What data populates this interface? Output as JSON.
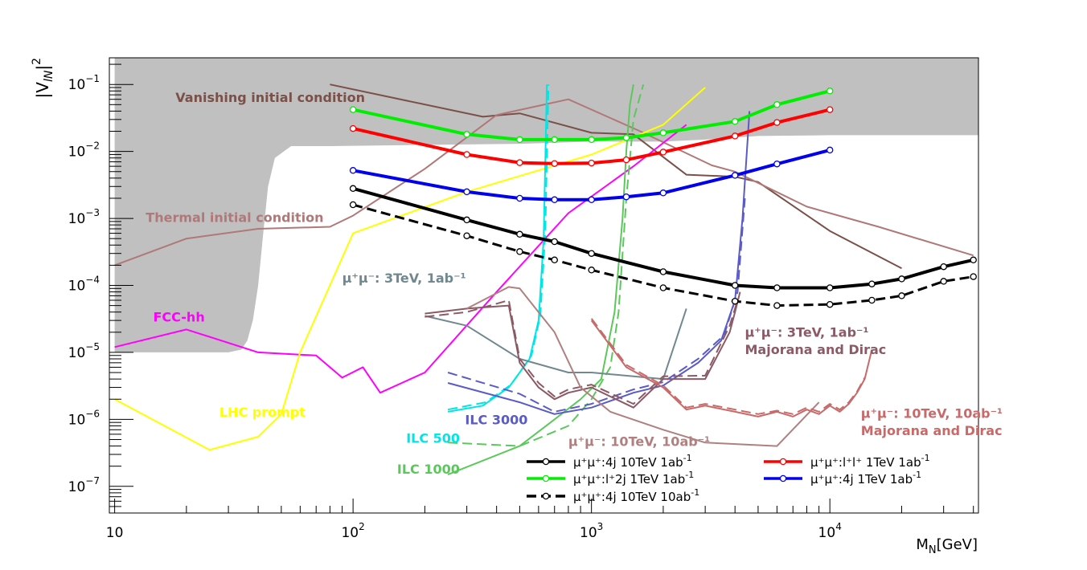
{
  "chart_data": {
    "type": "line",
    "x_scale": "log",
    "y_scale": "log",
    "xlim": [
      9.5,
      42000
    ],
    "ylim": [
      4e-08,
      0.25
    ],
    "xlabel": "M_N[GeV]",
    "ylabel": "|V_lN|^2",
    "x_ticks": [
      {
        "value": 10,
        "mantissa": "10",
        "exp": ""
      },
      {
        "value": 100,
        "mantissa": "10",
        "exp": "2"
      },
      {
        "value": 1000,
        "mantissa": "10",
        "exp": "3"
      },
      {
        "value": 10000,
        "mantissa": "10",
        "exp": "4"
      }
    ],
    "y_ticks": [
      {
        "value": 1e-07,
        "mantissa": "10",
        "exp": "−7"
      },
      {
        "value": 1e-06,
        "mantissa": "10",
        "exp": "−6"
      },
      {
        "value": 1e-05,
        "mantissa": "10",
        "exp": "−5"
      },
      {
        "value": 0.0001,
        "mantissa": "10",
        "exp": "−4"
      },
      {
        "value": 0.001,
        "mantissa": "10",
        "exp": "−3"
      },
      {
        "value": 0.01,
        "mantissa": "10",
        "exp": "−2"
      },
      {
        "value": 0.1,
        "mantissa": "10",
        "exp": "−1"
      }
    ],
    "excluded_regions": [
      {
        "name": "Vanishing and thermal initial condition region",
        "color": "#c0c0c0",
        "lower_boundary": [
          [
            10,
            1e-05
          ],
          [
            30,
            1e-05
          ],
          [
            34,
            1.1e-05
          ],
          [
            36,
            1.5e-05
          ],
          [
            38,
            3e-05
          ],
          [
            40,
            0.0001
          ],
          [
            42,
            0.0006
          ],
          [
            44,
            0.003
          ],
          [
            47,
            0.008
          ],
          [
            55,
            0.012
          ],
          [
            80,
            0.012
          ],
          [
            200,
            0.0125
          ],
          [
            500,
            0.013
          ],
          [
            1000,
            0.014
          ],
          [
            2000,
            0.014
          ],
          [
            3000,
            0.015
          ],
          [
            5000,
            0.017
          ],
          [
            10000,
            0.0175
          ],
          [
            42000,
            0.0175
          ]
        ]
      }
    ],
    "series": [
      {
        "name": "Vanishing initial condition",
        "color": "#7a5048",
        "style": "solid",
        "width": 2,
        "x": [
          80,
          350,
          500,
          1000,
          1500,
          2500,
          4000,
          5000,
          10000,
          20000
        ],
        "y": [
          0.1,
          0.033,
          0.037,
          0.019,
          0.018,
          0.0045,
          0.0042,
          0.0035,
          0.00065,
          0.00018
        ]
      },
      {
        "name": "Thermal initial condition",
        "color": "#b07878",
        "style": "solid",
        "width": 2,
        "x": [
          10,
          20,
          40,
          80,
          100,
          200,
          400,
          800,
          1600,
          3200,
          4000,
          8000,
          16000,
          40000
        ],
        "y": [
          0.0002,
          0.0005,
          0.0007,
          0.00075,
          0.0011,
          0.0055,
          0.035,
          0.06,
          0.02,
          0.0062,
          0.005,
          0.0015,
          0.00075,
          0.00028
        ]
      },
      {
        "name": "FCC-hh",
        "color": "#ff00ff",
        "style": "solid",
        "width": 2,
        "x": [
          10,
          20,
          40,
          70,
          90,
          110,
          130,
          200,
          400,
          800,
          1500,
          2500
        ],
        "y": [
          1.2e-05,
          2.2e-05,
          1e-05,
          9e-06,
          4.2e-06,
          6e-06,
          2.5e-06,
          5e-06,
          8e-05,
          0.0012,
          0.006,
          0.025
        ]
      },
      {
        "name": "LHC prompt",
        "color": "#ffff00",
        "style": "solid",
        "width": 2,
        "x": [
          10,
          25,
          40,
          50,
          60,
          100,
          300,
          1000,
          2000,
          3000
        ],
        "y": [
          2e-06,
          3.5e-07,
          5.5e-07,
          1.2e-06,
          1e-05,
          0.0006,
          0.0025,
          0.009,
          0.025,
          0.09
        ]
      },
      {
        "name": "ILC 500",
        "color": "#00e5e5",
        "style": "solid",
        "width": 2,
        "x": [
          250,
          350,
          450,
          550,
          600,
          630,
          650
        ],
        "y": [
          1.3e-06,
          1.6e-06,
          3e-06,
          8e-06,
          3e-05,
          0.0005,
          0.1
        ]
      },
      {
        "name": "ILC 500 dashed",
        "color": "#00e5e5",
        "style": "dashed",
        "width": 2,
        "x": [
          250,
          360,
          460,
          560,
          610,
          640,
          660
        ],
        "y": [
          1.4e-06,
          1.8e-06,
          3.3e-06,
          9e-06,
          3.5e-05,
          0.0006,
          0.1
        ]
      },
      {
        "name": "ILC 1000",
        "color": "#5cc85c",
        "style": "solid",
        "width": 2,
        "x": [
          250,
          500,
          700,
          900,
          1100,
          1250,
          1350,
          1400,
          1450,
          1500
        ],
        "y": [
          1.5e-07,
          4e-07,
          1e-06,
          2e-06,
          4e-06,
          4e-05,
          0.001,
          0.01,
          0.05,
          0.1
        ]
      },
      {
        "name": "ILC 1000 dashed",
        "color": "#5cc85c",
        "style": "dashed",
        "width": 2,
        "x": [
          250,
          500,
          800,
          1000,
          1200,
          1300,
          1400,
          1500,
          1650
        ],
        "y": [
          4.5e-07,
          4e-07,
          8e-07,
          2e-06,
          6e-06,
          4e-05,
          0.002,
          0.03,
          0.1
        ]
      },
      {
        "name": "ILC 3000",
        "color": "#5a5ac8",
        "style": "solid",
        "width": 2,
        "x": [
          250,
          500,
          700,
          1000,
          1500,
          2000,
          2800,
          3500,
          4000,
          4300,
          4600
        ],
        "y": [
          3.5e-06,
          1.8e-06,
          1.2e-06,
          1.5e-06,
          2.5e-06,
          3.2e-06,
          7e-06,
          1.5e-05,
          6e-05,
          0.001,
          0.04
        ]
      },
      {
        "name": "ILC 3000 dashed",
        "color": "#5a5ac8",
        "style": "dashed",
        "width": 2,
        "x": [
          250,
          500,
          700,
          1000,
          1500,
          2000,
          2800,
          3600,
          4100,
          4400
        ],
        "y": [
          5e-06,
          2.4e-06,
          1.3e-06,
          1.7e-06,
          2.8e-06,
          3.6e-06,
          8e-06,
          1.8e-05,
          8e-05,
          0.002
        ]
      },
      {
        "name": "mu+mu-: 3TeV 1ab-1",
        "color": "#708890",
        "style": "solid",
        "width": 2,
        "x": [
          200,
          300,
          500,
          800,
          1000,
          2000,
          2500
        ],
        "y": [
          3.5e-05,
          2.5e-05,
          8e-06,
          5e-06,
          5e-06,
          4e-06,
          4.5e-05
        ]
      },
      {
        "name": "mu+mu-: 3TeV 1ab-1 Majorana and Dirac",
        "color": "#8b5a64",
        "style": "solid",
        "width": 2,
        "x": [
          200,
          300,
          450,
          500,
          600,
          700,
          800,
          1000,
          1500,
          2000,
          3000,
          3800,
          4000,
          4200
        ],
        "y": [
          3.8e-05,
          4.5e-05,
          5e-05,
          7e-06,
          3e-06,
          2e-06,
          2.5e-06,
          3e-06,
          1.5e-06,
          4e-06,
          4e-06,
          2e-05,
          4e-05,
          8e-05
        ]
      },
      {
        "name": "mu+mu-: 3TeV 1ab-1 Majorana and Dirac dashed",
        "color": "#8b5a64",
        "style": "dashed",
        "width": 2,
        "x": [
          200,
          300,
          450,
          500,
          600,
          700,
          800,
          1000,
          1500,
          2000,
          3000,
          3800,
          4100
        ],
        "y": [
          3.4e-05,
          4e-05,
          6e-05,
          8e-06,
          3.5e-06,
          2.2e-06,
          2.8e-06,
          3.3e-06,
          1.7e-06,
          4.4e-06,
          4.5e-06,
          2.5e-05,
          6e-05
        ]
      },
      {
        "name": "mu+mu-: 10TeV 10ab-1",
        "color": "#b08080",
        "style": "solid",
        "width": 2,
        "x": [
          300,
          450,
          500,
          700,
          900,
          1200,
          2000,
          3000,
          6000,
          9000
        ],
        "y": [
          4.5e-05,
          9.5e-05,
          9e-05,
          2e-05,
          3e-06,
          1.3e-06,
          7e-07,
          4.5e-07,
          4e-07,
          1.8e-06
        ]
      },
      {
        "name": "mu+mu-: 10TeV 10ab-1 Majorana and Dirac",
        "color": "#c86a6a",
        "style": "solid",
        "width": 2,
        "x": [
          1000,
          1400,
          2000,
          2500,
          3000,
          4000,
          5000,
          6000,
          7000,
          8000,
          9000,
          10000,
          11000,
          12000,
          13000,
          14000,
          15000
        ],
        "y": [
          3e-05,
          6e-06,
          3e-06,
          1.4e-06,
          1.6e-06,
          1.3e-06,
          1.1e-06,
          1.3e-06,
          1.1e-06,
          1.4e-06,
          1.2e-06,
          1.6e-06,
          1.3e-06,
          1.7e-06,
          2.5e-06,
          4e-06,
          1.1e-05
        ]
      },
      {
        "name": "mu+mu-: 10TeV 10ab-1 Majorana and Dirac dashed",
        "color": "#c86a6a",
        "style": "dashed",
        "width": 2,
        "x": [
          1000,
          1400,
          2000,
          2500,
          3000,
          4000,
          5000,
          6000,
          7000,
          8000,
          9000,
          10000,
          11000,
          12000,
          13000,
          14000
        ],
        "y": [
          3.2e-05,
          6.5e-06,
          3.2e-06,
          1.5e-06,
          1.7e-06,
          1.4e-06,
          1.2e-06,
          1.35e-06,
          1.2e-06,
          1.5e-06,
          1.3e-06,
          1.7e-06,
          1.4e-06,
          1.8e-06,
          2.6e-06,
          4.2e-06
        ]
      },
      {
        "name": "μ⁺μ⁺:l⁺2j 1TeV 1ab⁻¹",
        "color": "#00ee00",
        "style": "solid",
        "width": 4,
        "marker": "circle",
        "x": [
          100,
          300,
          500,
          700,
          1000,
          1400,
          2000,
          4000,
          6000,
          10000
        ],
        "y": [
          0.042,
          0.018,
          0.015,
          0.015,
          0.015,
          0.016,
          0.019,
          0.028,
          0.05,
          0.08
        ]
      },
      {
        "name": "μ⁺μ⁺:l⁺l⁺ 1TeV 1ab⁻¹",
        "color": "#ff0000",
        "style": "solid",
        "width": 4,
        "marker": "circle",
        "x": [
          100,
          300,
          500,
          700,
          1000,
          1400,
          2000,
          4000,
          6000,
          10000
        ],
        "y": [
          0.022,
          0.009,
          0.0068,
          0.0066,
          0.0067,
          0.0075,
          0.0098,
          0.017,
          0.027,
          0.042
        ]
      },
      {
        "name": "μ⁺μ⁺:4j 1TeV 1ab⁻¹",
        "color": "#0000ee",
        "style": "solid",
        "width": 4,
        "marker": "circle",
        "x": [
          100,
          300,
          500,
          700,
          1000,
          1400,
          2000,
          4000,
          6000,
          10000
        ],
        "y": [
          0.0052,
          0.0025,
          0.002,
          0.0019,
          0.0019,
          0.0021,
          0.0024,
          0.0044,
          0.0065,
          0.0105
        ]
      },
      {
        "name": "μ⁺μ⁺:4j 10TeV 1ab⁻¹",
        "color": "#000000",
        "style": "solid",
        "width": 4,
        "marker": "circle",
        "x": [
          100,
          300,
          500,
          700,
          1000,
          2000,
          4000,
          6000,
          10000,
          15000,
          20000,
          30000,
          40000
        ],
        "y": [
          0.0028,
          0.00095,
          0.00058,
          0.00045,
          0.0003,
          0.00016,
          0.0001,
          9.2e-05,
          9.2e-05,
          0.000105,
          0.000125,
          0.00019,
          0.00024
        ]
      },
      {
        "name": "μ⁺μ⁺:4j 10TeV 10ab⁻¹",
        "color": "#000000",
        "style": "dashed",
        "width": 3,
        "marker": "circle",
        "x": [
          100,
          300,
          500,
          700,
          1000,
          2000,
          4000,
          6000,
          10000,
          15000,
          20000,
          30000,
          40000
        ],
        "y": [
          0.0016,
          0.00055,
          0.00032,
          0.00024,
          0.00017,
          9.2e-05,
          5.8e-05,
          5e-05,
          5.2e-05,
          6e-05,
          7e-05,
          0.000115,
          0.000135
        ]
      }
    ],
    "annotations": [
      {
        "text": "Vanishing initial condition",
        "color": "#7a5048",
        "x": 18,
        "y": 0.055
      },
      {
        "text": "Thermal initial condition",
        "color": "#b07878",
        "x": 13.5,
        "y": 0.00088
      },
      {
        "text": "FCC-hh",
        "color": "#ff00ff",
        "x": 14.5,
        "y": 2.9e-05
      },
      {
        "text": "LHC prompt",
        "color": "#ffff00",
        "x": 27.5,
        "y": 1.1e-06
      },
      {
        "text": "ILC 500",
        "color": "#00e5e5",
        "x": 167,
        "y": 4.5e-07
      },
      {
        "text": "ILC 3000",
        "color": "#5a5ac8",
        "x": 295,
        "y": 8.5e-07
      },
      {
        "text": "ILC 1000",
        "color": "#5cc85c",
        "x": 153,
        "y": 1.55e-07
      },
      {
        "text": "μ⁺μ⁻: 3TeV, 1ab⁻¹",
        "color": "#708890",
        "x": 90,
        "y": 0.00011
      },
      {
        "text": "μ⁺μ⁻: 3TeV, 1ab⁻¹",
        "color": "#8b5a64",
        "x": 4400,
        "y": 1.7e-05
      },
      {
        "text": "Majorana and Dirac",
        "color": "#8b5a64",
        "x": 4400,
        "y": 9.5e-06
      },
      {
        "text": "μ⁺μ⁻: 10TeV, 10ab⁻¹",
        "color": "#b08080",
        "x": 800,
        "y": 4e-07
      },
      {
        "text": "μ⁺μ⁻: 10TeV, 10ab⁻¹",
        "color": "#c86a6a",
        "x": 13500,
        "y": 1.05e-06
      },
      {
        "text": "Majorana and Dirac",
        "color": "#c86a6a",
        "x": 13500,
        "y": 5.8e-07
      }
    ],
    "legend": {
      "placement": "bottom-center",
      "entries": [
        {
          "label_main": "μ⁺μ⁺:4j 10TeV 1ab",
          "label_sup": "-1",
          "color": "#000000",
          "style": "solid"
        },
        {
          "label_main": "μ⁺μ⁺:l⁺l⁺ 1TeV 1ab",
          "label_sup": "-1",
          "color": "#ff0000",
          "style": "solid"
        },
        {
          "label_main": "μ⁺μ⁺:l⁺2j 1TeV 1ab",
          "label_sup": "-1",
          "color": "#00ee00",
          "style": "solid"
        },
        {
          "label_main": "μ⁺μ⁺:4j 1TeV 1ab",
          "label_sup": "-1",
          "color": "#0000ee",
          "style": "solid"
        },
        {
          "label_main": "μ⁺μ⁺:4j 10TeV 10ab",
          "label_sup": "-1",
          "color": "#000000",
          "style": "dashed"
        }
      ]
    }
  }
}
